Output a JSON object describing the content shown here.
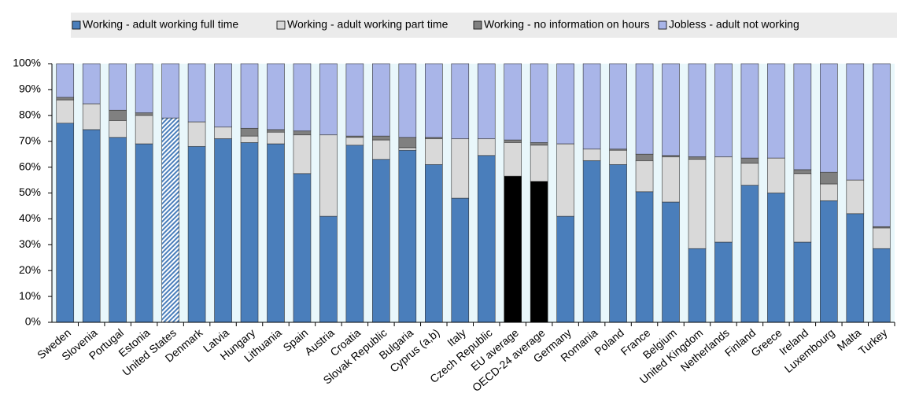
{
  "chart_data": {
    "type": "stacked_bar",
    "categories": [
      "Sweden",
      "Slovenia",
      "Portugal",
      "Estonia",
      "United States",
      "Denmark",
      "Latvia",
      "Hungary",
      "Lithuania",
      "Spain",
      "Austria",
      "Croatia",
      "Slovak Republic",
      "Bulgaria",
      "Cyprus (a,b)",
      "Italy",
      "Czech Republic",
      "EU average",
      "OECD-24 average",
      "Germany",
      "Romania",
      "Poland",
      "France",
      "Belgium",
      "United Kingdom",
      "Netherlands",
      "Finland",
      "Greece",
      "Ireland",
      "Luxembourg",
      "Malta",
      "Turkey"
    ],
    "series": [
      {
        "name": "Working - adult working full time",
        "color": "#4a7ebb",
        "values": [
          77,
          74.5,
          71.5,
          69,
          79,
          68,
          71,
          69.5,
          69,
          57.5,
          41,
          68.5,
          63,
          66.5,
          61,
          48,
          64.5,
          56.5,
          54.5,
          41,
          62.5,
          61,
          50.5,
          46.5,
          28.5,
          31,
          53,
          50,
          31,
          47,
          42,
          28.5
        ]
      },
      {
        "name": "Working - adult working part time",
        "color": "#d9d9d9",
        "values": [
          9,
          10,
          6.5,
          11,
          null,
          9.5,
          4.5,
          2.5,
          4.5,
          15,
          31.5,
          3,
          7.5,
          1,
          10,
          23,
          6.5,
          13,
          14,
          28,
          4.5,
          5.5,
          12,
          17.5,
          34.5,
          33,
          8.5,
          13.5,
          26.5,
          6.5,
          13,
          8
        ]
      },
      {
        "name": "Working - no information on hours",
        "color": "#808080",
        "values": [
          1,
          0,
          4,
          1,
          null,
          0,
          0,
          3,
          1,
          1.5,
          0,
          0.5,
          1.5,
          4,
          0.5,
          0,
          0,
          1,
          1,
          0,
          0,
          0.5,
          2.5,
          0.5,
          1,
          0,
          2,
          0,
          1.5,
          4.5,
          0,
          0.5
        ]
      },
      {
        "name": "Jobless - adult not working",
        "color": "#a9b5e8",
        "values": [
          13,
          15.5,
          18,
          19,
          21,
          22.5,
          24.5,
          25,
          25.5,
          26,
          27.5,
          28,
          28,
          28.5,
          28.5,
          29,
          29,
          29.5,
          30.5,
          31,
          33,
          33,
          35,
          35.5,
          36,
          36,
          36.5,
          36.5,
          41,
          42,
          45,
          63
        ]
      }
    ],
    "hatched_categories": [
      "United States"
    ],
    "black_categories": [
      "EU average",
      "OECD-24 average"
    ],
    "ylim": [
      0,
      100
    ],
    "yticks": [
      {
        "value": 0,
        "label": "0%"
      },
      {
        "value": 10,
        "label": "10%"
      },
      {
        "value": 20,
        "label": "20%"
      },
      {
        "value": 30,
        "label": "30%"
      },
      {
        "value": 40,
        "label": "40%"
      },
      {
        "value": 50,
        "label": "50%"
      },
      {
        "value": 60,
        "label": "60%"
      },
      {
        "value": 70,
        "label": "70%"
      },
      {
        "value": 80,
        "label": "80%"
      },
      {
        "value": 90,
        "label": "90%"
      },
      {
        "value": 100,
        "label": "100%"
      }
    ],
    "plot_background": "#e9f7fb"
  }
}
